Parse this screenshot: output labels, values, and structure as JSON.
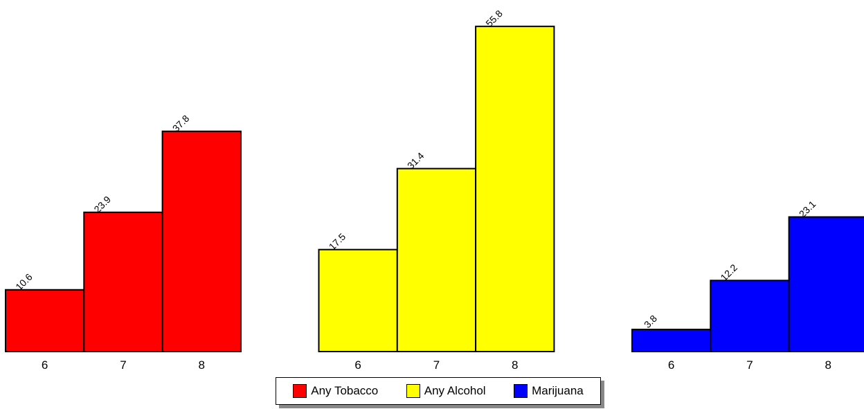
{
  "chart_data": {
    "type": "bar",
    "title": "",
    "xlabel": "",
    "ylabel": "",
    "ylim": [
      0,
      60
    ],
    "grid": false,
    "legend_position": "bottom",
    "groups": [
      {
        "name": "Any Tobacco",
        "color": "#ff0000",
        "categories": [
          "6",
          "7",
          "8"
        ],
        "values": [
          10.6,
          23.9,
          37.8
        ],
        "labels": [
          "10.6",
          "23.9",
          "37.8"
        ]
      },
      {
        "name": "Any Alcohol",
        "color": "#ffff00",
        "categories": [
          "6",
          "7",
          "8"
        ],
        "values": [
          17.5,
          31.4,
          55.8
        ],
        "labels": [
          "17.5",
          "31.4",
          "55.8"
        ]
      },
      {
        "name": "Marijuana",
        "color": "#0000ff",
        "categories": [
          "6",
          "7",
          "8"
        ],
        "values": [
          3.8,
          12.2,
          23.1
        ],
        "labels": [
          "3.8",
          "12.2",
          "23.1"
        ]
      }
    ]
  },
  "legend": {
    "items": [
      {
        "label": "Any Tobacco",
        "color": "#ff0000"
      },
      {
        "label": "Any Alcohol",
        "color": "#ffff00"
      },
      {
        "label": "Marijuana",
        "color": "#0000ff"
      }
    ]
  }
}
